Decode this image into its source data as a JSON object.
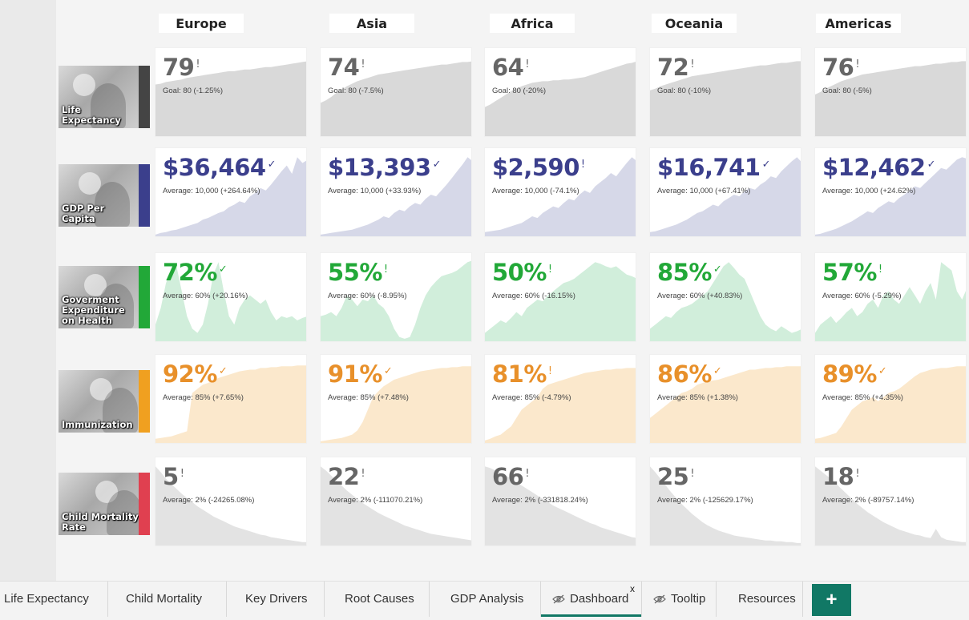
{
  "regions": [
    "Europe",
    "Asia",
    "Africa",
    "Oceania",
    "Americas"
  ],
  "metrics": [
    {
      "key": "life-expectancy",
      "caption": "Life Expectancy",
      "bar_color": "#444444",
      "value_color": "#666666",
      "fill_color": "#d9d9d9",
      "cells": [
        {
          "value": "79",
          "indicator": "!",
          "sub": "Goal: 80 (-1.25%)"
        },
        {
          "value": "74",
          "indicator": "!",
          "sub": "Goal: 80 (-7.5%)"
        },
        {
          "value": "64",
          "indicator": "!",
          "sub": "Goal: 80 (-20%)"
        },
        {
          "value": "72",
          "indicator": "!",
          "sub": "Goal: 80 (-10%)"
        },
        {
          "value": "76",
          "indicator": "!",
          "sub": "Goal: 80 (-5%)"
        }
      ],
      "trends": [
        [
          0.62,
          0.63,
          0.65,
          0.66,
          0.67,
          0.68,
          0.7,
          0.71,
          0.72,
          0.73,
          0.74,
          0.75,
          0.76,
          0.77,
          0.78,
          0.78,
          0.79,
          0.8,
          0.8,
          0.81,
          0.82,
          0.83,
          0.83,
          0.84,
          0.85,
          0.86,
          0.87,
          0.88,
          0.89,
          0.9
        ],
        [
          0.4,
          0.43,
          0.47,
          0.52,
          0.56,
          0.6,
          0.63,
          0.66,
          0.68,
          0.7,
          0.72,
          0.74,
          0.75,
          0.76,
          0.77,
          0.78,
          0.79,
          0.8,
          0.81,
          0.82,
          0.83,
          0.84,
          0.85,
          0.86,
          0.86,
          0.87,
          0.88,
          0.89,
          0.89,
          0.9
        ],
        [
          0.35,
          0.38,
          0.42,
          0.46,
          0.5,
          0.54,
          0.57,
          0.6,
          0.62,
          0.64,
          0.65,
          0.66,
          0.66,
          0.67,
          0.67,
          0.68,
          0.68,
          0.69,
          0.7,
          0.71,
          0.73,
          0.75,
          0.77,
          0.79,
          0.81,
          0.83,
          0.85,
          0.87,
          0.88,
          0.9
        ],
        [
          0.55,
          0.57,
          0.6,
          0.62,
          0.64,
          0.66,
          0.68,
          0.7,
          0.72,
          0.73,
          0.74,
          0.75,
          0.76,
          0.77,
          0.78,
          0.79,
          0.8,
          0.81,
          0.82,
          0.83,
          0.84,
          0.85,
          0.85,
          0.86,
          0.87,
          0.88,
          0.88,
          0.89,
          0.9,
          0.9
        ],
        [
          0.5,
          0.53,
          0.57,
          0.6,
          0.63,
          0.66,
          0.68,
          0.7,
          0.72,
          0.74,
          0.75,
          0.76,
          0.77,
          0.78,
          0.79,
          0.8,
          0.81,
          0.82,
          0.83,
          0.84,
          0.84,
          0.85,
          0.86,
          0.87,
          0.87,
          0.88,
          0.89,
          0.89,
          0.9,
          0.9
        ]
      ]
    },
    {
      "key": "gdp-per-capita",
      "caption": "GDP Per Capita",
      "bar_color": "#3b3f8c",
      "value_color": "#3b3f8c",
      "fill_color": "#d6d8e8",
      "cells": [
        {
          "value": "$36,464",
          "indicator": "✓",
          "sub": "Average: 10,000 (+264.64%)"
        },
        {
          "value": "$13,393",
          "indicator": "✓",
          "sub": "Average: 10,000 (+33.93%)"
        },
        {
          "value": "$2,590",
          "indicator": "!",
          "sub": "Average: 10,000 (-74.1%)"
        },
        {
          "value": "$16,741",
          "indicator": "✓",
          "sub": "Average: 10,000 (+67.41%)"
        },
        {
          "value": "$12,462",
          "indicator": "✓",
          "sub": "Average: 10,000 (+24.62%)"
        }
      ],
      "trends": [
        [
          0.02,
          0.04,
          0.05,
          0.07,
          0.08,
          0.1,
          0.12,
          0.14,
          0.16,
          0.2,
          0.22,
          0.25,
          0.28,
          0.3,
          0.35,
          0.38,
          0.42,
          0.4,
          0.48,
          0.52,
          0.58,
          0.55,
          0.62,
          0.7,
          0.78,
          0.85,
          0.75,
          0.95,
          0.88,
          0.92
        ],
        [
          0.02,
          0.03,
          0.04,
          0.05,
          0.06,
          0.07,
          0.08,
          0.1,
          0.12,
          0.14,
          0.17,
          0.2,
          0.24,
          0.22,
          0.28,
          0.32,
          0.3,
          0.36,
          0.4,
          0.38,
          0.45,
          0.5,
          0.48,
          0.55,
          0.62,
          0.7,
          0.78,
          0.86,
          0.95,
          0.9
        ],
        [
          0.05,
          0.06,
          0.07,
          0.08,
          0.1,
          0.12,
          0.14,
          0.16,
          0.2,
          0.24,
          0.22,
          0.28,
          0.32,
          0.36,
          0.34,
          0.4,
          0.45,
          0.43,
          0.5,
          0.55,
          0.52,
          0.6,
          0.65,
          0.7,
          0.76,
          0.72,
          0.8,
          0.88,
          0.95,
          0.9
        ],
        [
          0.05,
          0.06,
          0.08,
          0.1,
          0.12,
          0.14,
          0.17,
          0.2,
          0.24,
          0.28,
          0.3,
          0.34,
          0.38,
          0.36,
          0.42,
          0.46,
          0.5,
          0.48,
          0.54,
          0.58,
          0.56,
          0.62,
          0.66,
          0.72,
          0.7,
          0.78,
          0.84,
          0.9,
          0.95,
          0.88
        ],
        [
          0.02,
          0.03,
          0.05,
          0.07,
          0.09,
          0.12,
          0.15,
          0.18,
          0.22,
          0.26,
          0.3,
          0.28,
          0.34,
          0.38,
          0.42,
          0.4,
          0.46,
          0.5,
          0.55,
          0.6,
          0.58,
          0.64,
          0.7,
          0.76,
          0.82,
          0.8,
          0.86,
          0.92,
          0.95,
          0.93
        ]
      ]
    },
    {
      "key": "gov-expenditure-health",
      "caption": "Goverment Expenditure on Health",
      "bar_color": "#22a838",
      "value_color": "#22a838",
      "fill_color": "#d1eedb",
      "cells": [
        {
          "value": "72%",
          "indicator": "✓",
          "sub": "Average: 60% (+20.16%)"
        },
        {
          "value": "55%",
          "indicator": "!",
          "sub": "Average: 60% (-8.95%)"
        },
        {
          "value": "50%",
          "indicator": "!",
          "sub": "Average: 60% (-16.15%)"
        },
        {
          "value": "85%",
          "indicator": "✓",
          "sub": "Average: 60% (+40.83%)"
        },
        {
          "value": "57%",
          "indicator": "!",
          "sub": "Average: 60% (-5.29%)"
        }
      ],
      "trends": [
        [
          0.2,
          0.4,
          0.7,
          0.85,
          0.9,
          0.6,
          0.3,
          0.15,
          0.1,
          0.2,
          0.45,
          0.8,
          0.95,
          0.6,
          0.3,
          0.2,
          0.4,
          0.5,
          0.55,
          0.5,
          0.45,
          0.5,
          0.35,
          0.25,
          0.3,
          0.28,
          0.3,
          0.25,
          0.28,
          0.3
        ],
        [
          0.3,
          0.32,
          0.35,
          0.3,
          0.4,
          0.55,
          0.5,
          0.42,
          0.5,
          0.48,
          0.55,
          0.45,
          0.4,
          0.3,
          0.15,
          0.05,
          0.03,
          0.05,
          0.2,
          0.4,
          0.55,
          0.65,
          0.72,
          0.78,
          0.8,
          0.82,
          0.85,
          0.9,
          0.95,
          0.97
        ],
        [
          0.1,
          0.15,
          0.2,
          0.25,
          0.22,
          0.28,
          0.35,
          0.3,
          0.4,
          0.45,
          0.5,
          0.48,
          0.55,
          0.6,
          0.65,
          0.7,
          0.72,
          0.75,
          0.8,
          0.85,
          0.9,
          0.95,
          0.93,
          0.9,
          0.88,
          0.9,
          0.85,
          0.8,
          0.78,
          0.75
        ],
        [
          0.15,
          0.2,
          0.25,
          0.3,
          0.28,
          0.35,
          0.4,
          0.42,
          0.45,
          0.5,
          0.55,
          0.6,
          0.7,
          0.8,
          0.9,
          0.95,
          0.88,
          0.8,
          0.75,
          0.6,
          0.45,
          0.3,
          0.2,
          0.15,
          0.12,
          0.18,
          0.14,
          0.1,
          0.12,
          0.15
        ],
        [
          0.1,
          0.2,
          0.25,
          0.3,
          0.22,
          0.28,
          0.35,
          0.4,
          0.3,
          0.35,
          0.45,
          0.5,
          0.4,
          0.55,
          0.6,
          0.5,
          0.45,
          0.55,
          0.65,
          0.55,
          0.45,
          0.6,
          0.7,
          0.5,
          0.95,
          0.9,
          0.85,
          0.6,
          0.5,
          0.65
        ]
      ]
    },
    {
      "key": "immunization",
      "caption": "Immunization",
      "bar_color": "#f0a020",
      "value_color": "#e8902a",
      "fill_color": "#fbe8cc",
      "cells": [
        {
          "value": "92%",
          "indicator": "✓",
          "sub": "Average: 85% (+7.65%)"
        },
        {
          "value": "91%",
          "indicator": "✓",
          "sub": "Average: 85% (+7.48%)"
        },
        {
          "value": "81%",
          "indicator": "!",
          "sub": "Average: 85% (-4.79%)"
        },
        {
          "value": "86%",
          "indicator": "✓",
          "sub": "Average: 85% (+1.38%)"
        },
        {
          "value": "89%",
          "indicator": "✓",
          "sub": "Average: 85% (+4.35%)"
        }
      ],
      "trends": [
        [
          0.05,
          0.06,
          0.07,
          0.08,
          0.1,
          0.12,
          0.14,
          0.6,
          0.65,
          0.7,
          0.72,
          0.75,
          0.78,
          0.8,
          0.82,
          0.84,
          0.86,
          0.87,
          0.88,
          0.88,
          0.9,
          0.9,
          0.91,
          0.91,
          0.92,
          0.92,
          0.92,
          0.93,
          0.93,
          0.93
        ],
        [
          0.02,
          0.03,
          0.04,
          0.05,
          0.06,
          0.08,
          0.1,
          0.15,
          0.25,
          0.4,
          0.55,
          0.62,
          0.68,
          0.72,
          0.76,
          0.78,
          0.8,
          0.82,
          0.84,
          0.86,
          0.87,
          0.88,
          0.89,
          0.9,
          0.9,
          0.91,
          0.91,
          0.92,
          0.92,
          0.92
        ],
        [
          0.03,
          0.05,
          0.08,
          0.1,
          0.15,
          0.2,
          0.3,
          0.4,
          0.45,
          0.5,
          0.55,
          0.65,
          0.7,
          0.72,
          0.74,
          0.76,
          0.78,
          0.8,
          0.82,
          0.84,
          0.85,
          0.86,
          0.87,
          0.88,
          0.88,
          0.89,
          0.89,
          0.9,
          0.9,
          0.9
        ],
        [
          0.3,
          0.35,
          0.4,
          0.45,
          0.5,
          0.55,
          0.6,
          0.62,
          0.65,
          0.7,
          0.72,
          0.74,
          0.75,
          0.76,
          0.78,
          0.8,
          0.82,
          0.84,
          0.86,
          0.88,
          0.88,
          0.89,
          0.9,
          0.9,
          0.91,
          0.91,
          0.92,
          0.92,
          0.92,
          0.92
        ],
        [
          0.05,
          0.06,
          0.08,
          0.1,
          0.12,
          0.2,
          0.3,
          0.4,
          0.45,
          0.5,
          0.52,
          0.55,
          0.5,
          0.55,
          0.6,
          0.62,
          0.65,
          0.7,
          0.75,
          0.8,
          0.84,
          0.86,
          0.88,
          0.89,
          0.9,
          0.9,
          0.91,
          0.92,
          0.92,
          0.92
        ]
      ]
    },
    {
      "key": "child-mortality",
      "caption": "Child Mortality Rate",
      "bar_color": "#e04050",
      "value_color": "#666666",
      "fill_color": "#e3e3e3",
      "cells": [
        {
          "value": "5",
          "indicator": "!",
          "sub": "Average: 2% (-24265.08%)"
        },
        {
          "value": "22",
          "indicator": "!",
          "sub": "Average: 2% (-111070.21%)"
        },
        {
          "value": "66",
          "indicator": "!",
          "sub": "Average: 2% (-331818.24%)"
        },
        {
          "value": "25",
          "indicator": "!",
          "sub": "Average: 2% (-125629.17%)"
        },
        {
          "value": "18",
          "indicator": "!",
          "sub": "Average: 2% (-89757.14%)"
        }
      ],
      "trends": [
        [
          0.95,
          0.88,
          0.8,
          0.74,
          0.68,
          0.62,
          0.57,
          0.52,
          0.47,
          0.43,
          0.39,
          0.35,
          0.32,
          0.29,
          0.26,
          0.23,
          0.21,
          0.19,
          0.17,
          0.15,
          0.13,
          0.12,
          0.1,
          0.09,
          0.08,
          0.07,
          0.06,
          0.05,
          0.04,
          0.04
        ],
        [
          0.95,
          0.9,
          0.84,
          0.78,
          0.72,
          0.66,
          0.61,
          0.56,
          0.51,
          0.47,
          0.43,
          0.39,
          0.36,
          0.33,
          0.3,
          0.27,
          0.24,
          0.22,
          0.2,
          0.18,
          0.16,
          0.14,
          0.13,
          0.12,
          0.11,
          0.1,
          0.09,
          0.08,
          0.07,
          0.06
        ],
        [
          0.95,
          0.93,
          0.9,
          0.87,
          0.84,
          0.8,
          0.76,
          0.72,
          0.68,
          0.64,
          0.6,
          0.56,
          0.52,
          0.48,
          0.45,
          0.42,
          0.39,
          0.36,
          0.33,
          0.3,
          0.27,
          0.25,
          0.22,
          0.2,
          0.18,
          0.16,
          0.14,
          0.12,
          0.1,
          0.09
        ],
        [
          0.95,
          0.88,
          0.8,
          0.72,
          0.64,
          0.57,
          0.5,
          0.44,
          0.38,
          0.33,
          0.28,
          0.24,
          0.21,
          0.18,
          0.16,
          0.14,
          0.12,
          0.11,
          0.1,
          0.09,
          0.08,
          0.07,
          0.06,
          0.06,
          0.05,
          0.05,
          0.04,
          0.04,
          0.03,
          0.03
        ],
        [
          0.95,
          0.9,
          0.85,
          0.8,
          0.74,
          0.68,
          0.62,
          0.56,
          0.5,
          0.45,
          0.4,
          0.36,
          0.32,
          0.28,
          0.25,
          0.22,
          0.19,
          0.17,
          0.15,
          0.13,
          0.12,
          0.1,
          0.09,
          0.2,
          0.1,
          0.07,
          0.06,
          0.05,
          0.04,
          0.04
        ]
      ]
    }
  ],
  "tabs": [
    {
      "label": "Life Expectancy",
      "hidden": false,
      "active": false
    },
    {
      "label": "Child Mortality",
      "hidden": false,
      "active": false
    },
    {
      "label": "Key Drivers",
      "hidden": false,
      "active": false
    },
    {
      "label": "Root Causes",
      "hidden": false,
      "active": false
    },
    {
      "label": "GDP Analysis",
      "hidden": false,
      "active": false
    },
    {
      "label": "Dashboard",
      "hidden": true,
      "active": true,
      "close": "x"
    },
    {
      "label": "Tooltip",
      "hidden": true,
      "active": false
    },
    {
      "label": "Resources",
      "hidden": false,
      "active": false
    }
  ],
  "add_page_label": "+",
  "accent": "#117865"
}
